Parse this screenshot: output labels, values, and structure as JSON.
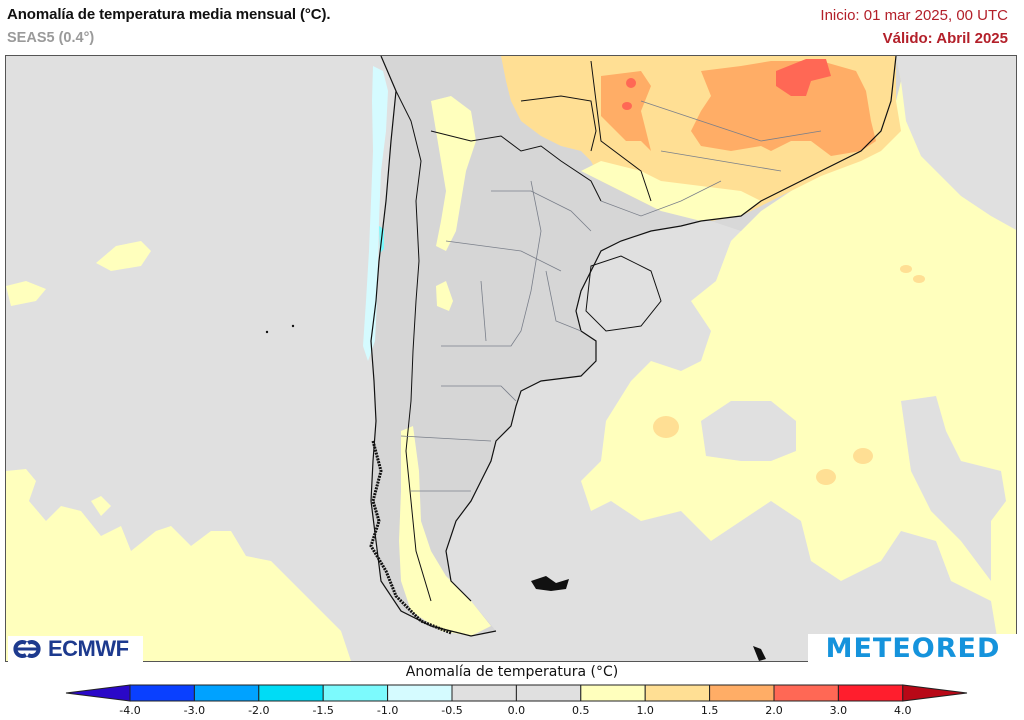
{
  "header": {
    "title": "Anomalía de temperatura media mensual (°C).",
    "subtitle": "SEAS5 (0.4°)",
    "init": "Inicio: 01 mar 2025, 00 UTC",
    "valid": "Válido: Abril 2025"
  },
  "map": {
    "region": "South America - Southern Cone",
    "background_color": "#e0e0e0",
    "land_color": "#d8d8d8",
    "border_color": "#111111",
    "admin_border_color": "#7a7f8a",
    "regions": [
      {
        "name": "southern-brazil-warm",
        "anomaly_range": "1.0 to 2.0",
        "color": "#ffd88f"
      },
      {
        "name": "central-brazil-hot",
        "anomaly_range": "2.0 to 3.0",
        "color": "#ff6e55"
      },
      {
        "name": "atlantic-warm",
        "anomaly_range": "0.5 to 1.0",
        "color": "#ffffbd"
      },
      {
        "name": "chile-coast-cool",
        "anomaly_range": "-1.0 to -0.5",
        "color": "#d5fbff"
      },
      {
        "name": "patagonia-andes-warm",
        "anomaly_range": "0.5 to 1.0",
        "color": "#ffffbd"
      }
    ]
  },
  "logos": {
    "left": "ECMWF",
    "right": "METEORED"
  },
  "colorbar": {
    "title": "Anomalía de temperatura (°C)",
    "left_arrow_color": "#2a08c8",
    "right_arrow_color": "#b80817",
    "boxes": [
      {
        "from": -4.0,
        "to": -3.0,
        "color": "#0a40ff"
      },
      {
        "from": -3.0,
        "to": -2.0,
        "color": "#00a2ff"
      },
      {
        "from": -2.0,
        "to": -1.5,
        "color": "#00dcf5"
      },
      {
        "from": -1.5,
        "to": -1.0,
        "color": "#7cfafd"
      },
      {
        "from": -1.0,
        "to": -0.5,
        "color": "#d5fbff"
      },
      {
        "from": -0.5,
        "to": 0.0,
        "color": "#e0e0e0"
      },
      {
        "from": 0.0,
        "to": 0.5,
        "color": "#e0e0e0"
      },
      {
        "from": 0.5,
        "to": 1.0,
        "color": "#ffffbd"
      },
      {
        "from": 1.0,
        "to": 1.5,
        "color": "#ffdf94"
      },
      {
        "from": 1.5,
        "to": 2.0,
        "color": "#ffad66"
      },
      {
        "from": 2.0,
        "to": 3.0,
        "color": "#ff6855"
      },
      {
        "from": 3.0,
        "to": 4.0,
        "color": "#ff1e2d"
      }
    ],
    "tick_labels": [
      "-4.0",
      "-3.0",
      "-2.0",
      "-1.5",
      "-1.0",
      "-0.5",
      "0.0",
      "0.5",
      "1.0",
      "1.5",
      "2.0",
      "3.0",
      "4.0"
    ]
  }
}
